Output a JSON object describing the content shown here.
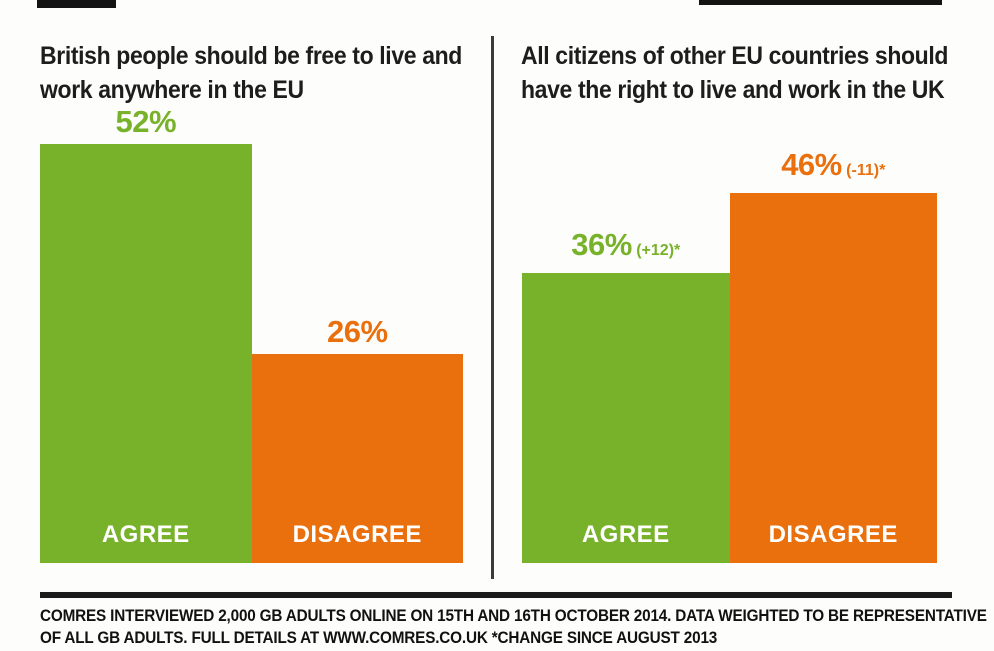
{
  "colors": {
    "agree_green": "#78b22b",
    "disagree_orange": "#ea6f0d",
    "title_text": "#1d1d1d",
    "category_label_text": "#ffffff",
    "rule_black": "#1b1b1b"
  },
  "chart_data": [
    {
      "type": "bar",
      "title": "British people should be free to live and work anywhere in the EU",
      "title_lines": [
        "British people should be free to live and",
        "work anywhere in the EU"
      ],
      "categories": [
        "AGREE",
        "DISAGREE"
      ],
      "values": [
        52,
        26
      ],
      "value_labels": [
        "52%",
        "26%"
      ],
      "change_labels": [
        "",
        ""
      ],
      "series_colors": [
        "#78b22b",
        "#ea6f0d"
      ],
      "xlabel": "",
      "ylabel": "",
      "ylim": [
        0,
        62
      ],
      "grid": false,
      "legend": "none"
    },
    {
      "type": "bar",
      "title": "All citizens of other EU countries should have the right to live and work in the UK",
      "title_lines": [
        "All citizens of other EU countries should",
        "have the right to live and work in the UK"
      ],
      "categories": [
        "AGREE",
        "DISAGREE"
      ],
      "values": [
        36,
        46
      ],
      "value_labels": [
        "36%",
        "46%"
      ],
      "change_labels": [
        "(+12)*",
        "(-11)*"
      ],
      "series_colors": [
        "#78b22b",
        "#ea6f0d"
      ],
      "xlabel": "",
      "ylabel": "",
      "ylim": [
        0,
        62
      ],
      "grid": false,
      "legend": "none"
    }
  ],
  "footnote": {
    "line1": "COMRES INTERVIEWED 2,000 GB ADULTS ONLINE ON 15TH AND 16TH OCTOBER 2014. DATA WEIGHTED TO BE REPRESENTATIVE",
    "line2": "OF ALL GB ADULTS.  FULL DETAILS AT WWW.COMRES.CO.UK *CHANGE SINCE AUGUST 2013"
  }
}
